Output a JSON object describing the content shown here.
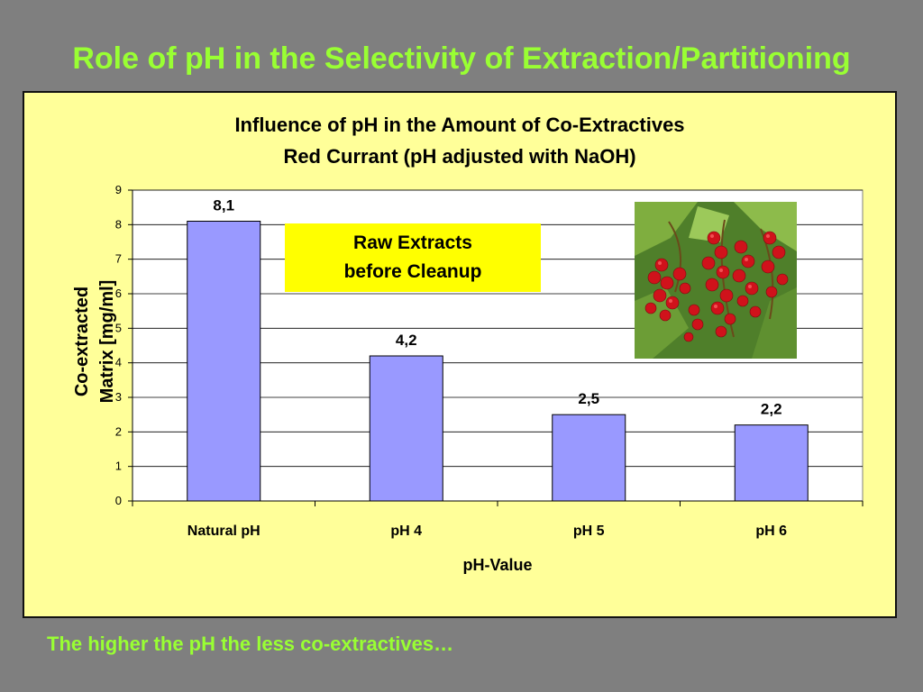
{
  "slide": {
    "title": "Role of pH in the Selectivity of Extraction/Partitioning",
    "caption": "The higher the pH the less co-extractives…"
  },
  "note": {
    "line1": "Raw Extracts",
    "line2": "before Cleanup"
  },
  "photo": {
    "subject": "red currant berries with leaves",
    "icon": "red-currant-photo"
  },
  "colors": {
    "background": "#7f7f7f",
    "accent_text": "#99ff33",
    "chart_background": "#ffff99",
    "bar_fill": "#9999ff",
    "note_fill": "#ffff00"
  },
  "chart_data": {
    "type": "bar",
    "title": "Influence of pH in the Amount of Co-Extractives",
    "subtitle": "Red Currant (pH adjusted with NaOH)",
    "xlabel": "pH-Value",
    "ylabel": "Co-extracted Matrix [mg/ml]",
    "categories": [
      "Natural pH",
      "pH 4",
      "pH 5",
      "pH 6"
    ],
    "values": [
      8.1,
      4.2,
      2.5,
      2.2
    ],
    "data_labels": [
      "8,1",
      "4,2",
      "2,5",
      "2,2"
    ],
    "ylim": [
      0,
      9
    ],
    "yticks": [
      "0",
      "1",
      "2",
      "3",
      "4",
      "5",
      "6",
      "7",
      "8",
      "9"
    ],
    "grid": true,
    "legend": "none"
  }
}
